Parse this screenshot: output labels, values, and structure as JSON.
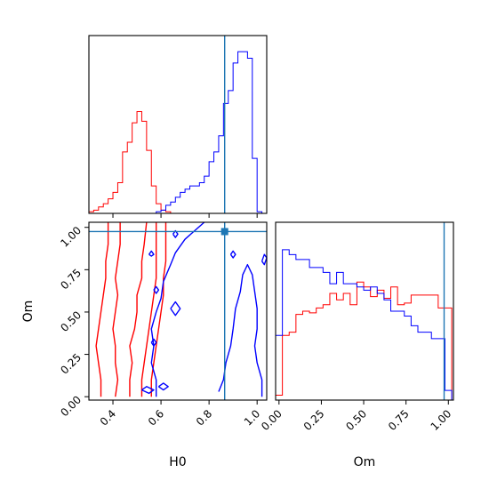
{
  "chart_data": {
    "type": "corner",
    "parameters": [
      "H0",
      "Om"
    ],
    "colors": {
      "series_a": "#ff0000",
      "series_b": "#0000ff",
      "truth": "#1f77b4"
    },
    "truth": {
      "H0": 0.865,
      "Om": 0.975
    },
    "axes": {
      "H0": {
        "label": "H0",
        "range": [
          0.3,
          1.04
        ],
        "ticks": [
          "0.4",
          "0.6",
          "0.8",
          "1.0"
        ],
        "tick_values": [
          0.4,
          0.6,
          0.8,
          1.0
        ]
      },
      "Om": {
        "label": "Om",
        "range": [
          -0.02,
          1.03
        ],
        "ticks": [
          "0.00",
          "0.25",
          "0.50",
          "0.75",
          "1.00"
        ],
        "tick_values": [
          0.0,
          0.25,
          0.5,
          0.75,
          1.0
        ]
      }
    },
    "hist_H0": {
      "ylim": [
        0,
        1.1
      ],
      "bin_edges": [
        0.3,
        0.32,
        0.34,
        0.36,
        0.38,
        0.4,
        0.42,
        0.44,
        0.46,
        0.48,
        0.5,
        0.52,
        0.54,
        0.56,
        0.58,
        0.6,
        0.62,
        0.64,
        0.66,
        0.68,
        0.7,
        0.72,
        0.74,
        0.76,
        0.78,
        0.8,
        0.82,
        0.84,
        0.86,
        0.88,
        0.9,
        0.92,
        0.94,
        0.96,
        0.98,
        1.0,
        1.02,
        1.04
      ],
      "series_a": [
        0.01,
        0.02,
        0.04,
        0.06,
        0.09,
        0.13,
        0.19,
        0.38,
        0.44,
        0.56,
        0.63,
        0.57,
        0.39,
        0.17,
        0.06,
        0.02,
        0.01,
        0,
        0,
        0,
        0,
        0,
        0,
        0,
        0,
        0,
        0,
        0,
        0,
        0,
        0,
        0,
        0,
        0,
        0,
        0,
        0
      ],
      "series_b": [
        0,
        0,
        0,
        0,
        0,
        0,
        0,
        0,
        0,
        0,
        0,
        0,
        0,
        0,
        0.01,
        0.02,
        0.05,
        0.07,
        0.1,
        0.13,
        0.15,
        0.17,
        0.17,
        0.19,
        0.23,
        0.32,
        0.38,
        0.48,
        0.68,
        0.76,
        0.93,
        1.0,
        1.0,
        0.96,
        0.34,
        0.01,
        0
      ]
    },
    "hist_Om": {
      "ylim": [
        0,
        1.1
      ],
      "bin_edges": [
        -0.02,
        0.02,
        0.06,
        0.1,
        0.14,
        0.18,
        0.22,
        0.26,
        0.3,
        0.34,
        0.38,
        0.42,
        0.46,
        0.5,
        0.54,
        0.58,
        0.62,
        0.66,
        0.7,
        0.74,
        0.78,
        0.82,
        0.86,
        0.9,
        0.94,
        0.98,
        1.02
      ],
      "series_a": [
        0.03,
        0.4,
        0.42,
        0.53,
        0.55,
        0.54,
        0.57,
        0.59,
        0.66,
        0.62,
        0.66,
        0.59,
        0.73,
        0.7,
        0.64,
        0.68,
        0.63,
        0.7,
        0.59,
        0.6,
        0.65,
        0.65,
        0.65,
        0.65,
        0.57,
        0.57
      ],
      "series_b": [
        0.4,
        0.93,
        0.9,
        0.87,
        0.87,
        0.82,
        0.82,
        0.79,
        0.72,
        0.79,
        0.72,
        0.72,
        0.7,
        0.68,
        0.7,
        0.66,
        0.62,
        0.55,
        0.55,
        0.52,
        0.46,
        0.42,
        0.42,
        0.38,
        0.38,
        0.06
      ]
    },
    "contours": {
      "series_a": [
        [
          [
            0.35,
            0.0
          ],
          [
            0.35,
            0.1
          ],
          [
            0.34,
            0.2
          ],
          [
            0.33,
            0.3
          ],
          [
            0.34,
            0.4
          ],
          [
            0.35,
            0.5
          ],
          [
            0.36,
            0.6
          ],
          [
            0.37,
            0.7
          ],
          [
            0.37,
            0.8
          ],
          [
            0.38,
            0.9
          ],
          [
            0.38,
            1.03
          ]
        ],
        [
          [
            0.41,
            0.0
          ],
          [
            0.42,
            0.1
          ],
          [
            0.41,
            0.2
          ],
          [
            0.41,
            0.3
          ],
          [
            0.4,
            0.4
          ],
          [
            0.41,
            0.5
          ],
          [
            0.42,
            0.6
          ],
          [
            0.41,
            0.7
          ],
          [
            0.42,
            0.8
          ],
          [
            0.43,
            0.9
          ],
          [
            0.43,
            1.03
          ]
        ],
        [
          [
            0.47,
            0.0
          ],
          [
            0.47,
            0.1
          ],
          [
            0.48,
            0.2
          ],
          [
            0.47,
            0.3
          ],
          [
            0.49,
            0.4
          ],
          [
            0.5,
            0.5
          ],
          [
            0.5,
            0.6
          ],
          [
            0.52,
            0.7
          ],
          [
            0.52,
            0.8
          ],
          [
            0.53,
            0.9
          ],
          [
            0.54,
            1.03
          ]
        ],
        [
          [
            0.52,
            0.0
          ],
          [
            0.52,
            0.1
          ],
          [
            0.53,
            0.2
          ],
          [
            0.54,
            0.3
          ],
          [
            0.55,
            0.4
          ],
          [
            0.56,
            0.5
          ],
          [
            0.57,
            0.6
          ],
          [
            0.58,
            0.7
          ],
          [
            0.58,
            0.8
          ],
          [
            0.58,
            0.9
          ],
          [
            0.58,
            1.03
          ]
        ],
        [
          [
            0.56,
            0.0
          ],
          [
            0.56,
            0.1
          ],
          [
            0.57,
            0.2
          ],
          [
            0.58,
            0.3
          ],
          [
            0.59,
            0.4
          ],
          [
            0.6,
            0.5
          ],
          [
            0.61,
            0.6
          ],
          [
            0.61,
            0.7
          ],
          [
            0.62,
            0.8
          ],
          [
            0.62,
            0.9
          ],
          [
            0.62,
            1.03
          ]
        ]
      ],
      "series_b": [
        [
          [
            0.58,
            0.0
          ],
          [
            0.58,
            0.1
          ],
          [
            0.56,
            0.2
          ],
          [
            0.57,
            0.3
          ],
          [
            0.56,
            0.4
          ],
          [
            0.58,
            0.5
          ],
          [
            0.6,
            0.58
          ],
          [
            0.61,
            0.68
          ],
          [
            0.64,
            0.78
          ],
          [
            0.66,
            0.85
          ],
          [
            0.7,
            0.93
          ],
          [
            0.74,
            0.98
          ],
          [
            0.78,
            1.03
          ]
        ],
        [
          [
            0.84,
            0.03
          ],
          [
            0.86,
            0.1
          ],
          [
            0.87,
            0.2
          ],
          [
            0.89,
            0.3
          ],
          [
            0.9,
            0.4
          ],
          [
            0.91,
            0.52
          ],
          [
            0.93,
            0.62
          ],
          [
            0.94,
            0.72
          ],
          [
            0.96,
            0.78
          ],
          [
            0.98,
            0.72
          ],
          [
            0.99,
            0.62
          ],
          [
            1.0,
            0.52
          ],
          [
            1.0,
            0.4
          ],
          [
            0.99,
            0.3
          ],
          [
            1.0,
            0.2
          ],
          [
            1.02,
            0.1
          ],
          [
            1.02,
            0.0
          ]
        ],
        [
          [
            0.64,
            0.52
          ],
          [
            0.66,
            0.48
          ],
          [
            0.68,
            0.52
          ],
          [
            0.66,
            0.56
          ],
          [
            0.64,
            0.52
          ]
        ],
        [
          [
            0.57,
            0.63
          ],
          [
            0.58,
            0.61
          ],
          [
            0.59,
            0.63
          ],
          [
            0.58,
            0.65
          ],
          [
            0.57,
            0.63
          ]
        ],
        [
          [
            0.55,
            0.84
          ],
          [
            0.56,
            0.83
          ],
          [
            0.57,
            0.84
          ],
          [
            0.56,
            0.86
          ],
          [
            0.55,
            0.84
          ]
        ],
        [
          [
            0.65,
            0.96
          ],
          [
            0.66,
            0.94
          ],
          [
            0.67,
            0.96
          ],
          [
            0.66,
            0.98
          ],
          [
            0.65,
            0.96
          ]
        ],
        [
          [
            0.89,
            0.84
          ],
          [
            0.9,
            0.82
          ],
          [
            0.91,
            0.84
          ],
          [
            0.9,
            0.86
          ],
          [
            0.89,
            0.84
          ]
        ],
        [
          [
            0.56,
            0.32
          ],
          [
            0.57,
            0.3
          ],
          [
            0.58,
            0.32
          ],
          [
            0.57,
            0.34
          ],
          [
            0.56,
            0.32
          ]
        ],
        [
          [
            0.52,
            0.04
          ],
          [
            0.55,
            0.02
          ],
          [
            0.57,
            0.04
          ],
          [
            0.54,
            0.06
          ],
          [
            0.52,
            0.04
          ]
        ],
        [
          [
            0.59,
            0.06
          ],
          [
            0.61,
            0.04
          ],
          [
            0.63,
            0.06
          ],
          [
            0.61,
            0.08
          ],
          [
            0.59,
            0.06
          ]
        ],
        [
          [
            1.02,
            0.8
          ],
          [
            1.03,
            0.78
          ],
          [
            1.04,
            0.82
          ],
          [
            1.03,
            0.84
          ],
          [
            1.02,
            0.8
          ]
        ]
      ]
    }
  }
}
